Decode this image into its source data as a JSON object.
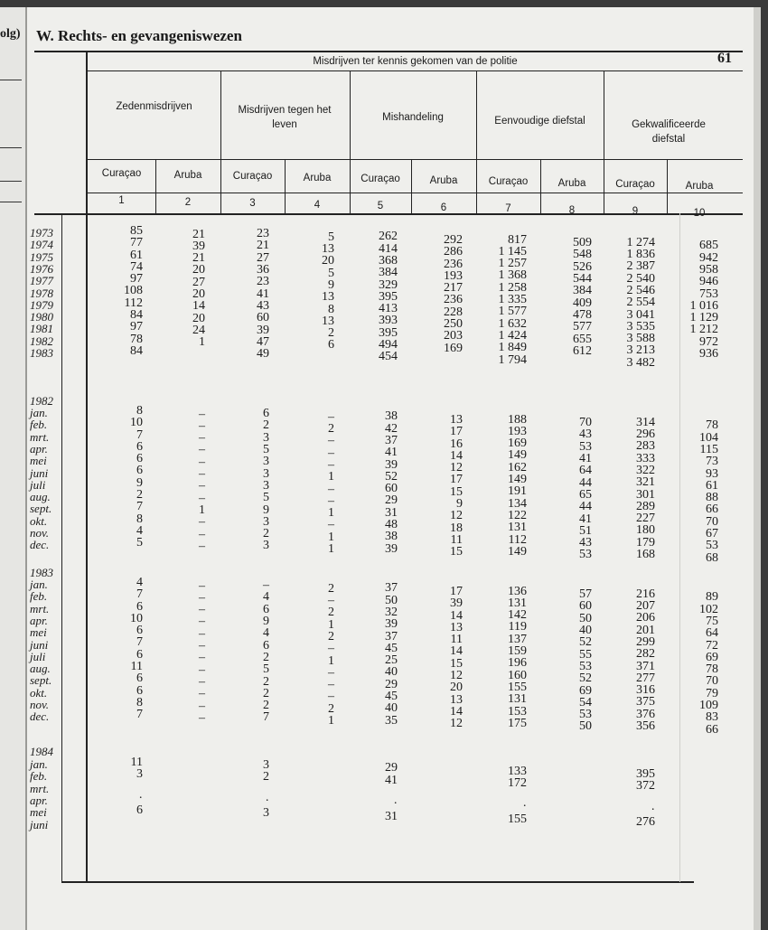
{
  "prev_page_fragment": "olg)",
  "section_title": "W. Rechts- en gevangeniswezen",
  "page_number": "61",
  "header": {
    "main": "Misdrijven ter kennis gekomen van de politie",
    "groups": [
      "Zedenmisdrijven",
      "Misdrijven tegen het leven",
      "Mishandeling",
      "Eenvoudige diefstal",
      "Gekwalificeerde diefstal"
    ],
    "subcolumns": [
      "Curaçao",
      "Aruba",
      "Curaçao",
      "Aruba",
      "Curaçao",
      "Aruba",
      "Curaçao",
      "Aruba",
      "Curaçao",
      "Aruba"
    ],
    "numbers": [
      "1",
      "2",
      "3",
      "4",
      "5",
      "6",
      "7",
      "8",
      "9",
      "10"
    ]
  },
  "annual": {
    "years": [
      "1973",
      "1974",
      "1975",
      "1976",
      "1977",
      "1978",
      "1979",
      "1980",
      "1981",
      "1982",
      "1983"
    ],
    "columns": [
      [
        "85",
        "77",
        "61",
        "74",
        "97",
        "108",
        "112",
        "84",
        "97",
        "78",
        "84"
      ],
      [
        "21",
        "39",
        "21",
        "20",
        "27",
        "20",
        "14",
        "20",
        "24",
        "1"
      ],
      [
        "23",
        "21",
        "27",
        "36",
        "23",
        "41",
        "43",
        "60",
        "39",
        "47",
        "49"
      ],
      [
        "5",
        "13",
        "20",
        "5",
        "9",
        "13",
        "8",
        "13",
        "2",
        "6"
      ],
      [
        "262",
        "414",
        "368",
        "384",
        "329",
        "395",
        "413",
        "393",
        "395",
        "494",
        "454"
      ],
      [
        "292",
        "286",
        "236",
        "193",
        "217",
        "236",
        "228",
        "250",
        "203",
        "169"
      ],
      [
        "817",
        "1 145",
        "1 257",
        "1 368",
        "1 258",
        "1 335",
        "1 577",
        "1 632",
        "1 424",
        "1 849",
        "1 794"
      ],
      [
        "509",
        "548",
        "526",
        "544",
        "384",
        "409",
        "478",
        "577",
        "655",
        "612"
      ],
      [
        "1 274",
        "1 836",
        "2 387",
        "2 540",
        "2 546",
        "2 554",
        "3 041",
        "3 535",
        "3 588",
        "3 213",
        "3 482"
      ],
      [
        "685",
        "942",
        "958",
        "946",
        "753",
        "1 016",
        "1 129",
        "1 212",
        "972",
        "936"
      ]
    ]
  },
  "monthly": [
    {
      "year": "1982",
      "months": [
        "jan.",
        "feb.",
        "mrt.",
        "apr.",
        "mei",
        "juni",
        "juli",
        "aug.",
        "sept.",
        "okt.",
        "nov.",
        "dec."
      ],
      "columns": [
        [
          "8",
          "10",
          "7",
          "6",
          "6",
          "6",
          "9",
          "2",
          "7",
          "8",
          "4",
          "5"
        ],
        [
          "–",
          "–",
          "–",
          "–",
          "–",
          "–",
          "–",
          "–",
          "1",
          "–",
          "–",
          "–"
        ],
        [
          "6",
          "2",
          "3",
          "5",
          "3",
          "3",
          "3",
          "5",
          "9",
          "3",
          "2",
          "3"
        ],
        [
          "–",
          "2",
          "–",
          "–",
          "–",
          "1",
          "–",
          "–",
          "1",
          "–",
          "1",
          "1"
        ],
        [
          "38",
          "42",
          "37",
          "41",
          "39",
          "52",
          "60",
          "29",
          "31",
          "48",
          "38",
          "39"
        ],
        [
          "13",
          "17",
          "16",
          "14",
          "12",
          "17",
          "15",
          "9",
          "12",
          "18",
          "11",
          "15"
        ],
        [
          "188",
          "193",
          "169",
          "149",
          "162",
          "149",
          "191",
          "134",
          "122",
          "131",
          "112",
          "149"
        ],
        [
          "70",
          "43",
          "53",
          "41",
          "64",
          "44",
          "65",
          "44",
          "41",
          "51",
          "43",
          "53"
        ],
        [
          "314",
          "296",
          "283",
          "333",
          "322",
          "321",
          "301",
          "289",
          "227",
          "180",
          "179",
          "168"
        ],
        [
          "78",
          "104",
          "115",
          "73",
          "93",
          "61",
          "88",
          "66",
          "70",
          "67",
          "53",
          "68"
        ]
      ]
    },
    {
      "year": "1983",
      "months": [
        "jan.",
        "feb.",
        "mrt.",
        "apr.",
        "mei",
        "juni",
        "juli",
        "aug.",
        "sept.",
        "okt.",
        "nov.",
        "dec."
      ],
      "columns": [
        [
          "4",
          "7",
          "6",
          "10",
          "6",
          "7",
          "6",
          "11",
          "6",
          "6",
          "8",
          "7"
        ],
        [
          "–",
          "–",
          "–",
          "–",
          "–",
          "–",
          "–",
          "–",
          "–",
          "–",
          "–",
          "–"
        ],
        [
          "–",
          "4",
          "6",
          "9",
          "4",
          "6",
          "2",
          "5",
          "2",
          "2",
          "2",
          "7"
        ],
        [
          "2",
          "–",
          "2",
          "1",
          "2",
          "–",
          "1",
          "–",
          "–",
          "–",
          "2",
          "1"
        ],
        [
          "37",
          "50",
          "32",
          "39",
          "37",
          "45",
          "25",
          "40",
          "29",
          "45",
          "40",
          "35"
        ],
        [
          "17",
          "39",
          "14",
          "13",
          "11",
          "14",
          "15",
          "12",
          "20",
          "13",
          "14",
          "12"
        ],
        [
          "136",
          "131",
          "142",
          "119",
          "137",
          "159",
          "196",
          "160",
          "155",
          "131",
          "153",
          "175"
        ],
        [
          "57",
          "60",
          "50",
          "40",
          "52",
          "55",
          "53",
          "52",
          "69",
          "54",
          "53",
          "50"
        ],
        [
          "216",
          "207",
          "206",
          "201",
          "299",
          "282",
          "371",
          "277",
          "316",
          "375",
          "376",
          "356"
        ],
        [
          "89",
          "102",
          "75",
          "64",
          "72",
          "69",
          "78",
          "70",
          "79",
          "109",
          "83",
          "66"
        ]
      ]
    },
    {
      "year": "1984",
      "months": [
        "jan.",
        "feb.",
        "mrt.",
        "apr.",
        "mei",
        "juni"
      ],
      "columns": [
        [
          "11",
          "3",
          "",
          "·",
          "6"
        ],
        [],
        [
          "3",
          "2",
          "",
          "·",
          "3"
        ],
        [],
        [
          "29",
          "41",
          "",
          "·",
          "31"
        ],
        [],
        [
          "133",
          "172",
          "",
          "·",
          "155"
        ],
        [],
        [
          "395",
          "372",
          "",
          "·",
          "276"
        ],
        []
      ]
    }
  ]
}
